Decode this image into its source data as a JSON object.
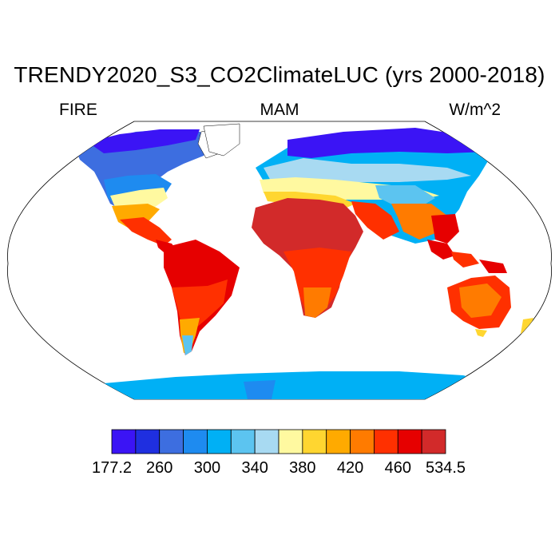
{
  "title": "TRENDY2020_S3_CO2ClimateLUC (yrs 2000-2018)",
  "left_label": "FIRE",
  "center_label": "MAM",
  "right_label": "W/m^2",
  "colorbar": {
    "colors": [
      "#3b14f5",
      "#1f2fe0",
      "#3d6ee0",
      "#1e8bf0",
      "#00b0f5",
      "#5cc4f0",
      "#a8daf2",
      "#fff9a0",
      "#ffd630",
      "#ffaa00",
      "#ff7b00",
      "#ff3000",
      "#e60000",
      "#d22a2a"
    ],
    "tick_labels": [
      "177.2",
      "260",
      "300",
      "340",
      "380",
      "420",
      "460",
      "534.5"
    ]
  }
}
